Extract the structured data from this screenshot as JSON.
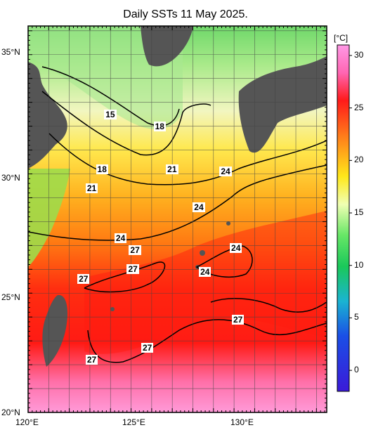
{
  "title": "Daily SSTs 11 May 2025.",
  "map": {
    "lat_labels": [
      "35°N",
      "30°N",
      "25°N",
      "20°N"
    ],
    "lon_labels": [
      "120°E",
      "125°E",
      "130°E"
    ],
    "lat_range": [
      20,
      36.2
    ],
    "lon_range": [
      120,
      134.5
    ]
  },
  "colorbar": {
    "unit": "[°C]",
    "ticks": [
      "30",
      "25",
      "20",
      "15",
      "10",
      "5",
      "0"
    ],
    "range": [
      -2,
      31
    ]
  },
  "contour_labels": [
    {
      "text": "15",
      "lon": 124.0,
      "lat": 32.5
    },
    {
      "text": "18",
      "lon": 126.4,
      "lat": 32.0
    },
    {
      "text": "18",
      "lon": 123.6,
      "lat": 30.2
    },
    {
      "text": "21",
      "lon": 127.0,
      "lat": 30.2
    },
    {
      "text": "24",
      "lon": 129.6,
      "lat": 30.1
    },
    {
      "text": "21",
      "lon": 123.1,
      "lat": 29.4
    },
    {
      "text": "24",
      "lon": 128.3,
      "lat": 28.6
    },
    {
      "text": "24",
      "lon": 124.5,
      "lat": 27.3
    },
    {
      "text": "27",
      "lon": 125.2,
      "lat": 26.8
    },
    {
      "text": "24",
      "lon": 130.1,
      "lat": 26.9
    },
    {
      "text": "27",
      "lon": 125.1,
      "lat": 26.0
    },
    {
      "text": "24",
      "lon": 128.6,
      "lat": 25.9
    },
    {
      "text": "27",
      "lon": 122.7,
      "lat": 25.6
    },
    {
      "text": "27",
      "lon": 130.2,
      "lat": 23.9
    },
    {
      "text": "27",
      "lon": 125.8,
      "lat": 22.7
    },
    {
      "text": "27",
      "lon": 123.1,
      "lat": 22.2
    }
  ]
}
